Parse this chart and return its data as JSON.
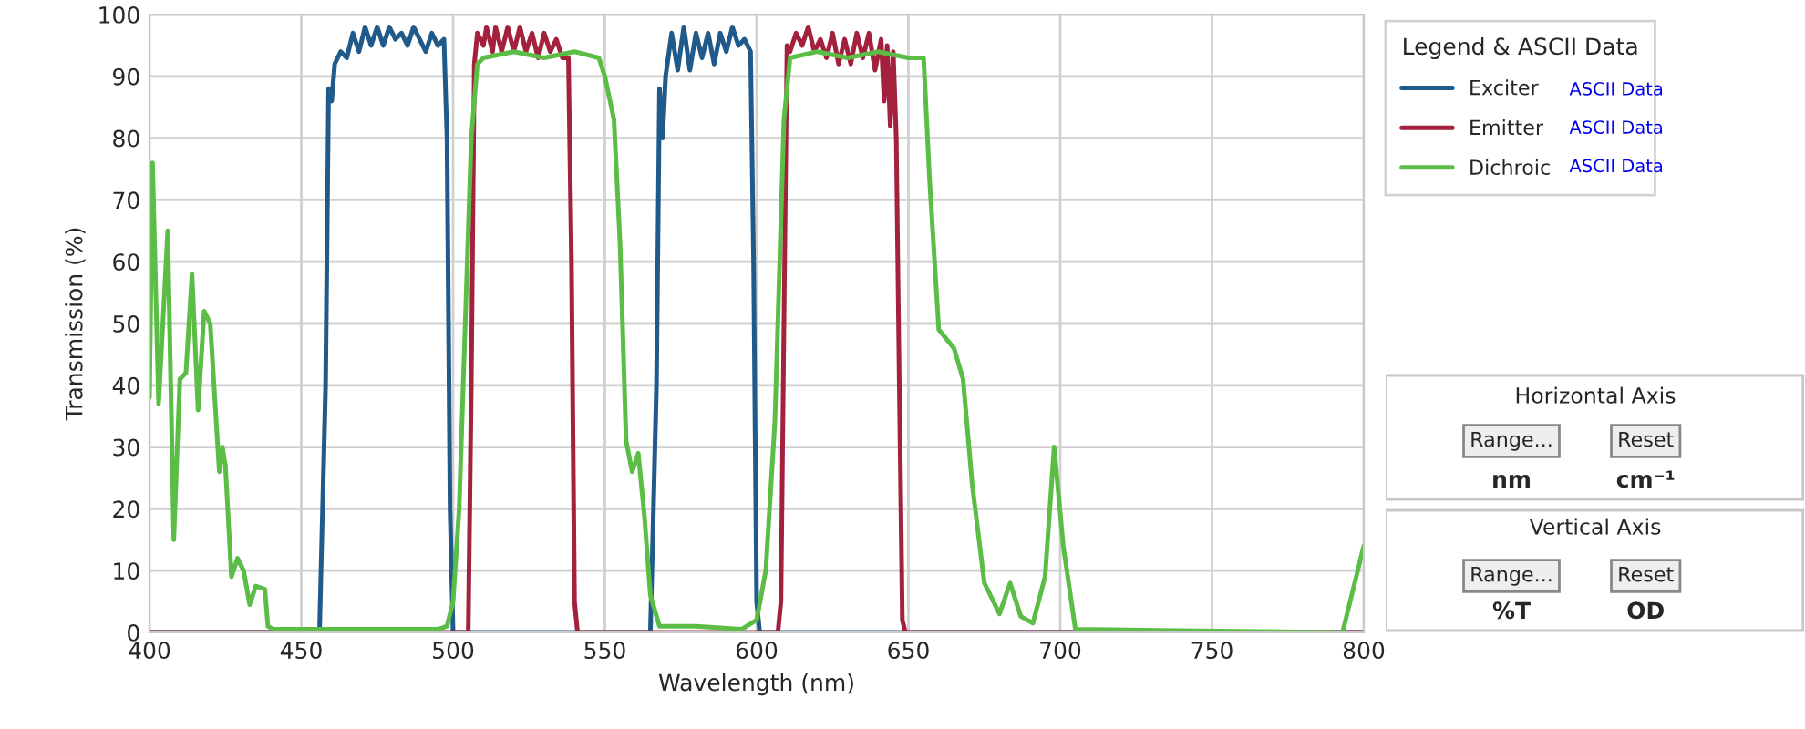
{
  "chart_data": [
    {
      "type": "line",
      "xlabel": "Wavelength (nm)",
      "ylabel": "Transmission (%)",
      "legend_title": "Legend & ASCII Data",
      "xlim": [
        400,
        800
      ],
      "xticks": [
        400,
        450,
        500,
        550,
        600,
        650,
        700,
        750,
        800
      ],
      "ylim": [
        0,
        100
      ],
      "yticks": [
        0,
        10,
        20,
        30,
        40,
        50,
        60,
        70,
        80,
        90,
        100
      ],
      "grid": true,
      "legend": "right",
      "marker": "none",
      "line_style": "solid",
      "series": [
        {
          "name": "Exciter",
          "color": "#1f5a8a",
          "x": [
            400,
            456,
            458,
            459,
            460,
            461,
            463,
            465,
            467,
            469,
            471,
            473,
            475,
            477,
            479,
            481,
            483,
            485,
            487,
            489,
            491,
            493,
            495,
            497,
            498,
            499,
            500,
            565,
            567,
            568,
            569,
            570,
            572,
            574,
            576,
            578,
            580,
            582,
            584,
            586,
            588,
            590,
            592,
            594,
            596,
            598,
            599,
            600,
            601,
            800
          ],
          "values": [
            0,
            0,
            40,
            88,
            86,
            92,
            94,
            93,
            97,
            94,
            98,
            95,
            98,
            95,
            98,
            96,
            97,
            95,
            98,
            96,
            94,
            97,
            95,
            96,
            80,
            20,
            0,
            0,
            40,
            88,
            80,
            90,
            97,
            91,
            98,
            91,
            97,
            93,
            97,
            92,
            97,
            94,
            98,
            95,
            96,
            94,
            60,
            5,
            0,
            0
          ]
        },
        {
          "name": "Emitter",
          "color": "#a3213d",
          "x": [
            400,
            505,
            506,
            507,
            508,
            510,
            511,
            513,
            514,
            516,
            518,
            520,
            522,
            524,
            526,
            528,
            530,
            532,
            534,
            536,
            538,
            539,
            540,
            541,
            607,
            608,
            609,
            610,
            611,
            613,
            615,
            617,
            619,
            621,
            623,
            625,
            627,
            629,
            631,
            633,
            635,
            637,
            639,
            641,
            642,
            643,
            644,
            645,
            646,
            647,
            648,
            649,
            800
          ],
          "values": [
            0,
            0,
            40,
            92,
            97,
            95,
            98,
            94,
            98,
            94,
            98,
            94,
            98,
            94,
            97,
            93,
            97,
            94,
            96,
            93,
            93,
            60,
            5,
            0,
            0,
            5,
            50,
            95,
            94,
            97,
            95,
            98,
            94,
            96,
            93,
            97,
            92,
            96,
            92,
            97,
            93,
            97,
            91,
            96,
            86,
            95,
            82,
            94,
            80,
            40,
            2,
            0,
            0
          ]
        },
        {
          "name": "Dichroic",
          "color": "#5bbd45",
          "x": [
            400,
            401,
            403,
            406,
            408,
            410,
            412,
            414,
            416,
            418,
            420,
            423,
            424,
            425,
            427,
            429,
            431,
            433,
            435,
            438,
            439,
            441,
            460,
            480,
            495,
            498,
            500,
            502,
            504,
            506,
            508,
            510,
            520,
            530,
            540,
            548,
            550,
            553,
            555,
            557,
            559,
            561,
            563,
            565,
            568,
            580,
            595,
            600,
            603,
            606,
            609,
            611,
            620,
            630,
            640,
            650,
            655,
            657,
            660,
            665,
            668,
            671,
            675,
            680,
            683.5,
            687,
            691,
            695,
            698,
            701,
            705,
            793,
            800
          ],
          "values": [
            38,
            76,
            37,
            65,
            15,
            41,
            42,
            58,
            36,
            52,
            50,
            26,
            30,
            27,
            9,
            12,
            10,
            4.5,
            7.5,
            7,
            1,
            0.5,
            0.5,
            0.5,
            0.5,
            1,
            5,
            20,
            50,
            80,
            92,
            93,
            94,
            93,
            94,
            93,
            90,
            83,
            63,
            31,
            26,
            29,
            19,
            6,
            1,
            1,
            0.5,
            2,
            10,
            34,
            83,
            93,
            94,
            93,
            94,
            93,
            93,
            73,
            49,
            46,
            41,
            24,
            8,
            3,
            8,
            2.6,
            1.5,
            9,
            30,
            14,
            0.5,
            0,
            14
          ]
        }
      ]
    },
    {
      "type": "other",
      "annotations": [
        "ASCII Data",
        "ASCII Data",
        "ASCII Data",
        "Horizontal Axis",
        "Range...",
        "Reset",
        "nm",
        "cm⁻¹",
        "Vertical Axis",
        "Range...",
        "Reset",
        "%T",
        "OD"
      ]
    }
  ]
}
